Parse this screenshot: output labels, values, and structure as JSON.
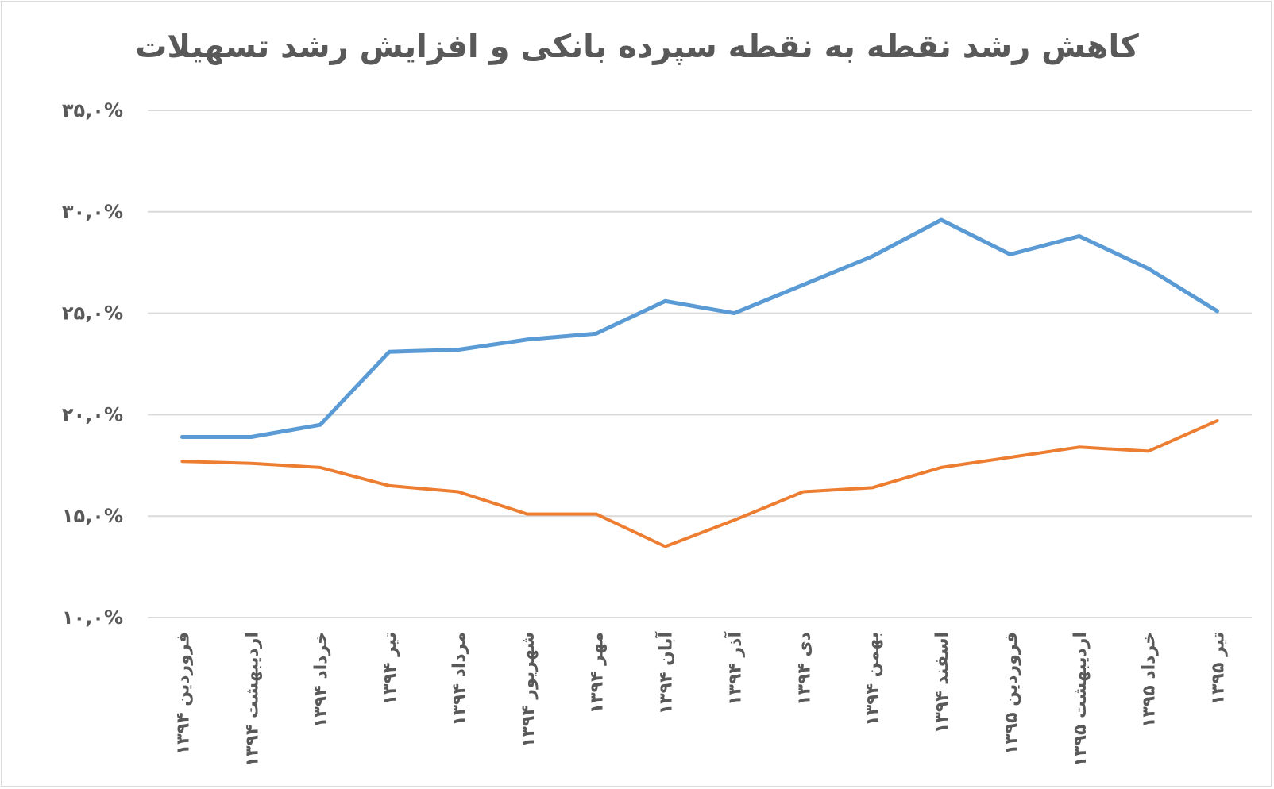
{
  "chart_data": {
    "type": "line",
    "title": "کاهش رشد نقطه به نقطه سپرده بانکی و افزایش رشد تسهیلات",
    "xlabel": "",
    "ylabel": "",
    "ylim": [
      10,
      35
    ],
    "yticks": [
      10,
      15,
      20,
      25,
      30,
      35
    ],
    "ytick_labels": [
      "۱۰,۰%",
      "۱۵,۰%",
      "۲۰,۰%",
      "۲۵,۰%",
      "۳۰,۰%",
      "۳۵,۰%"
    ],
    "grid": true,
    "legend": "none",
    "categories": [
      "فروردین ۱۳۹۴",
      "اردیبهشت ۱۳۹۴",
      "خرداد ۱۳۹۴",
      "تیر ۱۳۹۴",
      "مرداد ۱۳۹۴",
      "شهریور ۱۳۹۴",
      "مهر ۱۳۹۴",
      "آبان ۱۳۹۴",
      "آذر ۱۳۹۴",
      "دی ۱۳۹۴",
      "بهمن ۱۳۹۴",
      "اسفند ۱۳۹۴",
      "فروردین ۱۳۹۵",
      "اردیبهشت ۱۳۹۵",
      "خرداد ۱۳۹۵",
      "تیر ۱۳۹۵"
    ],
    "series": [
      {
        "color": "#5b9bd5",
        "values": [
          18.9,
          18.9,
          19.5,
          23.1,
          23.2,
          23.7,
          24.0,
          25.6,
          25.0,
          26.4,
          27.8,
          29.6,
          27.9,
          28.8,
          27.2,
          25.1
        ]
      },
      {
        "color": "#ed7d31",
        "values": [
          17.7,
          17.6,
          17.4,
          16.5,
          16.2,
          15.1,
          15.1,
          13.5,
          14.8,
          16.2,
          16.4,
          17.4,
          17.9,
          18.4,
          18.2,
          19.7
        ]
      }
    ]
  }
}
